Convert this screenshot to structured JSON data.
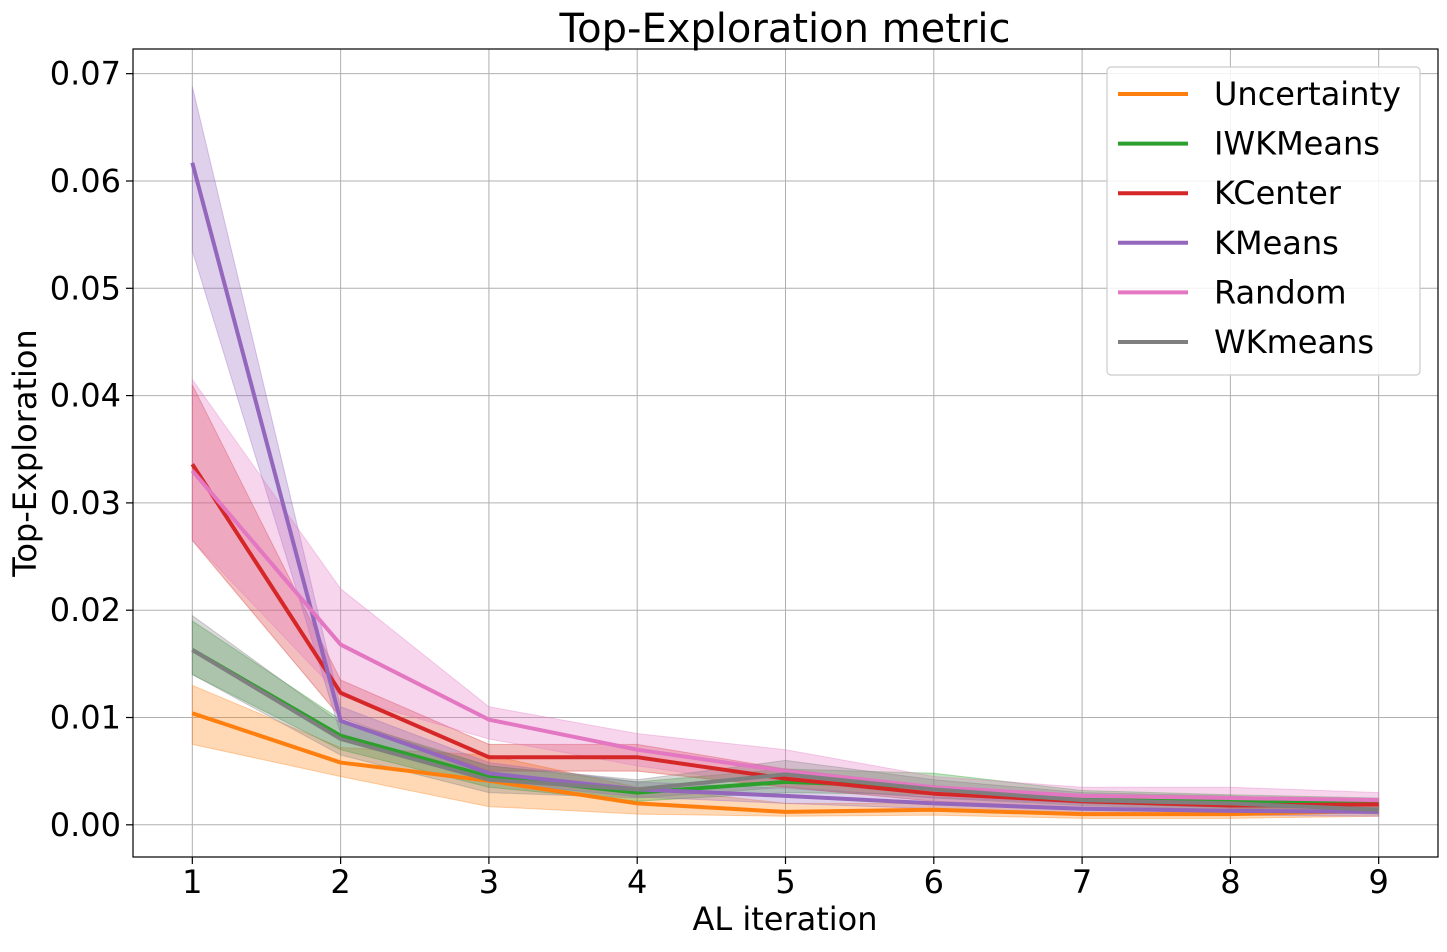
{
  "chart_data": {
    "type": "line",
    "title": "Top-Exploration metric",
    "xlabel": "AL iteration",
    "ylabel": "Top-Exploration",
    "x": [
      1,
      2,
      3,
      4,
      5,
      6,
      7,
      8,
      9
    ],
    "x_ticks": [
      "1",
      "2",
      "3",
      "4",
      "5",
      "6",
      "7",
      "8",
      "9"
    ],
    "y_ticks": [
      "0.00",
      "0.01",
      "0.02",
      "0.03",
      "0.04",
      "0.05",
      "0.06",
      "0.07"
    ],
    "xlim": [
      0.6,
      9.4
    ],
    "ylim": [
      -0.003,
      0.0723
    ],
    "grid": true,
    "legend_position": "top-right",
    "series": [
      {
        "name": "Uncertainty",
        "color": "#ff7f0e",
        "values": [
          0.0104,
          0.0058,
          0.0041,
          0.002,
          0.0012,
          0.0014,
          0.001,
          0.001,
          0.0013
        ],
        "lower": [
          0.0075,
          0.0045,
          0.0017,
          0.001,
          0.0008,
          0.0009,
          0.0006,
          0.0006,
          0.0008
        ],
        "upper": [
          0.013,
          0.0072,
          0.0065,
          0.0035,
          0.002,
          0.002,
          0.0015,
          0.0015,
          0.0018
        ]
      },
      {
        "name": "IWKMeans",
        "color": "#2ca02c",
        "values": [
          0.0163,
          0.0083,
          0.0045,
          0.003,
          0.004,
          0.0035,
          0.0025,
          0.0022,
          0.002
        ],
        "lower": [
          0.014,
          0.007,
          0.0035,
          0.0022,
          0.003,
          0.0028,
          0.002,
          0.0016,
          0.0015
        ],
        "upper": [
          0.019,
          0.0098,
          0.0055,
          0.004,
          0.0052,
          0.0048,
          0.0032,
          0.0028,
          0.0025
        ]
      },
      {
        "name": "KCenter",
        "color": "#d62728",
        "values": [
          0.0336,
          0.0123,
          0.0063,
          0.0063,
          0.0043,
          0.0029,
          0.0022,
          0.0018,
          0.0019
        ],
        "lower": [
          0.0265,
          0.01,
          0.005,
          0.005,
          0.0035,
          0.0022,
          0.0016,
          0.0012,
          0.0014
        ],
        "upper": [
          0.041,
          0.0135,
          0.0075,
          0.0075,
          0.0052,
          0.0036,
          0.0028,
          0.0024,
          0.0024
        ]
      },
      {
        "name": "KMeans",
        "color": "#9467bd",
        "values": [
          0.0617,
          0.0097,
          0.0048,
          0.0033,
          0.0027,
          0.002,
          0.0015,
          0.0013,
          0.0012
        ],
        "lower": [
          0.0535,
          0.0085,
          0.004,
          0.0026,
          0.002,
          0.0015,
          0.001,
          0.0009,
          0.0008
        ],
        "upper": [
          0.0688,
          0.011,
          0.0058,
          0.004,
          0.0034,
          0.0026,
          0.002,
          0.0018,
          0.0016
        ]
      },
      {
        "name": "Random",
        "color": "#e377c2",
        "values": [
          0.033,
          0.0168,
          0.0098,
          0.007,
          0.005,
          0.0035,
          0.0027,
          0.0025,
          0.0023
        ],
        "lower": [
          0.0265,
          0.012,
          0.008,
          0.0055,
          0.0035,
          0.0025,
          0.002,
          0.0018,
          0.0017
        ],
        "upper": [
          0.0415,
          0.022,
          0.011,
          0.0085,
          0.007,
          0.0045,
          0.0035,
          0.0035,
          0.003
        ]
      },
      {
        "name": "WKmeans",
        "color": "#7f7f7f",
        "values": [
          0.0163,
          0.008,
          0.0042,
          0.0033,
          0.0047,
          0.0033,
          0.0023,
          0.002,
          0.0014
        ],
        "lower": [
          0.014,
          0.0065,
          0.003,
          0.0025,
          0.0035,
          0.0025,
          0.0018,
          0.0014,
          0.001
        ],
        "upper": [
          0.0195,
          0.0095,
          0.0055,
          0.0042,
          0.006,
          0.0042,
          0.003,
          0.0027,
          0.0019
        ]
      }
    ]
  }
}
